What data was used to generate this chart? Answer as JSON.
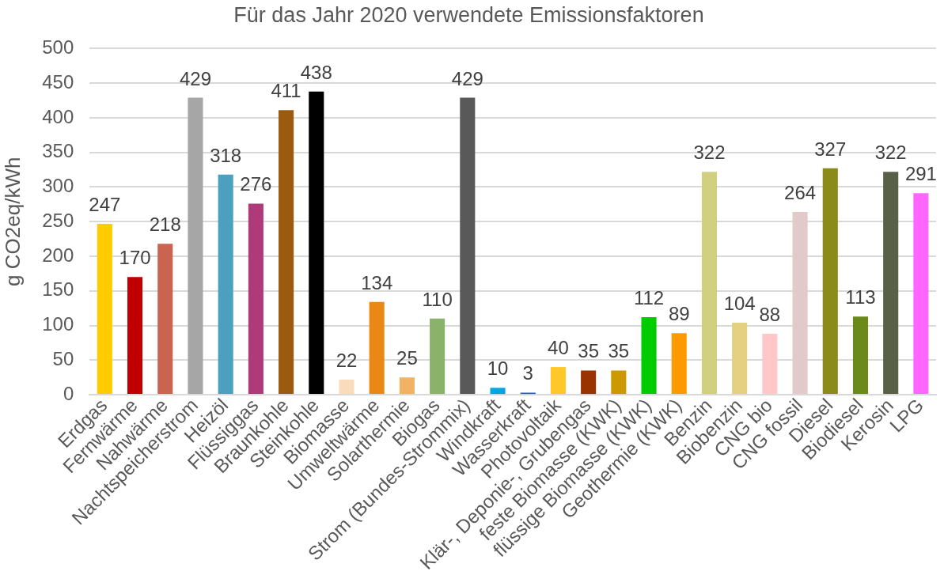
{
  "chart_data": {
    "type": "bar",
    "title": "Für das Jahr 2020 verwendete Emissionsfaktoren",
    "ylabel": "g CO2eq/kWh",
    "categories": [
      "Erdgas",
      "Fernwärme",
      "Nahwärme",
      "Nachtspeicherstrom",
      "Heizöl",
      "Flüssiggas",
      "Braunkohle",
      "Steinkohle",
      "Biomasse",
      "Umweltwärme",
      "Solarthermie",
      "Biogas",
      "Strom (Bundes-Strommix)",
      "Windkraft",
      "Wasserkraft",
      "Photovoltaik",
      "Klär-, Deponie-, Grubengas",
      "feste Biomasse (KWK)",
      "flüssige Biomasse (KWK)",
      "Geothermie (KWK)",
      "Benzin",
      "Biobenzin",
      "CNG bio",
      "CNG fossil",
      "Diesel",
      "Biodiesel",
      "Kerosin",
      "LPG"
    ],
    "values": [
      247,
      170,
      218,
      429,
      318,
      276,
      411,
      438,
      22,
      134,
      25,
      110,
      429,
      10,
      3,
      40,
      35,
      35,
      112,
      89,
      322,
      104,
      88,
      264,
      327,
      113,
      322,
      291
    ],
    "colors": [
      "#ffcc00",
      "#c00000",
      "#c86450",
      "#a6a6a6",
      "#4ba0be",
      "#af3a7a",
      "#9c5a0f",
      "#000000",
      "#f8dcbc",
      "#ea8816",
      "#f2b266",
      "#8bb26a",
      "#595959",
      "#00a6e0",
      "#1f5fd0",
      "#ffc828",
      "#993300",
      "#cc9900",
      "#00cc00",
      "#ff9900",
      "#d0d080",
      "#e5cf80",
      "#ffc8c8",
      "#e2caca",
      "#8b8b1a",
      "#6b8a1a",
      "#596048",
      "#ff66ff"
    ],
    "ylim": [
      0,
      500
    ],
    "yticks": [
      0,
      50,
      100,
      150,
      200,
      250,
      300,
      350,
      400,
      450,
      500
    ],
    "grid": "y",
    "data_labels": true
  }
}
